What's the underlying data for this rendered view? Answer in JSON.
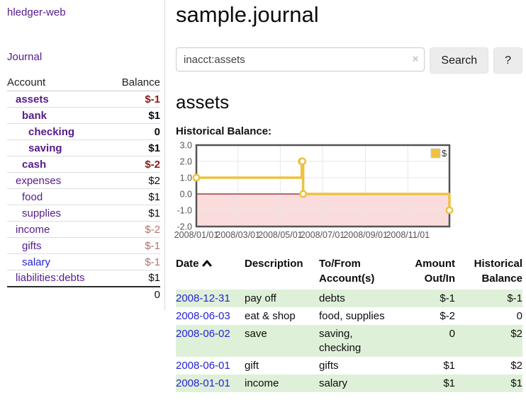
{
  "app": {
    "brand": "hledger-web"
  },
  "colors": {
    "link_purple": "#551a8b",
    "link_blue": "#2424d6",
    "negative_strong": "#8f1a1a",
    "negative_soft": "#b76e6e",
    "row_stripe_green": "#dff0d8",
    "chart_series_yellow": "#edc240",
    "chart_negative_fill": "#fbdcdc",
    "chart_zero_line": "#871a1a"
  },
  "sidebar": {
    "journal_link": "Journal",
    "accounts_table": {
      "headers": [
        "Account",
        "Balance"
      ],
      "rows": [
        {
          "account": "assets",
          "depth": 1,
          "bold": true,
          "balance": "$-1",
          "balance_style": "negative-strong"
        },
        {
          "account": "bank",
          "depth": 2,
          "bold": true,
          "balance": "$1",
          "balance_style": "positive"
        },
        {
          "account": "checking",
          "depth": 3,
          "bold": true,
          "balance": "0",
          "balance_style": "positive"
        },
        {
          "account": "saving",
          "depth": 3,
          "bold": true,
          "balance": "$1",
          "balance_style": "positive"
        },
        {
          "account": "cash",
          "depth": 2,
          "bold": true,
          "balance": "$-2",
          "balance_style": "negative-strong"
        },
        {
          "account": "expenses",
          "depth": 1,
          "bold": false,
          "balance": "$2",
          "balance_style": "positive"
        },
        {
          "account": "food",
          "depth": 2,
          "bold": false,
          "balance": "$1",
          "balance_style": "positive"
        },
        {
          "account": "supplies",
          "depth": 2,
          "bold": false,
          "balance": "$1",
          "balance_style": "positive"
        },
        {
          "account": "income",
          "depth": 1,
          "bold": false,
          "balance": "$-2",
          "balance_style": "negative-soft"
        },
        {
          "account": "gifts",
          "depth": 2,
          "bold": false,
          "balance": "$-1",
          "balance_style": "negative-soft"
        },
        {
          "account": "salary",
          "depth": 2,
          "bold": false,
          "link_style": "unvisited",
          "balance": "$-1",
          "balance_style": "negative-soft"
        },
        {
          "account": "liabilities:debts",
          "depth": 1,
          "bold": false,
          "balance": "$1",
          "balance_style": "positive"
        }
      ],
      "total": "0"
    }
  },
  "main": {
    "title": "sample.journal",
    "search": {
      "value": "inacct:assets",
      "clear_icon": "×",
      "button_label": "Search",
      "help_label": "?"
    },
    "account_heading": "assets",
    "chart_label": "Historical Balance:",
    "register": {
      "headers": [
        "Date",
        "Description",
        "To/From Account(s)",
        "Amount Out/In",
        "Historical Balance"
      ],
      "rows": [
        {
          "date": "2008-12-31",
          "description": "pay off",
          "accounts": "debts",
          "amount": "$-1",
          "balance": "$-1"
        },
        {
          "date": "2008-06-03",
          "description": "eat & shop",
          "accounts": "food, supplies",
          "amount": "$-2",
          "balance": "0"
        },
        {
          "date": "2008-06-02",
          "description": "save",
          "accounts": "saving, checking",
          "amount": "0",
          "balance": "$2"
        },
        {
          "date": "2008-06-01",
          "description": "gift",
          "accounts": "gifts",
          "amount": "$1",
          "balance": "$2"
        },
        {
          "date": "2008-01-01",
          "description": "income",
          "accounts": "salary",
          "amount": "$1",
          "balance": "$1"
        }
      ]
    }
  },
  "chart_data": {
    "type": "line",
    "step": true,
    "title": "Historical Balance",
    "series": [
      {
        "name": "$",
        "color": "#edc240",
        "points": [
          [
            "2008-01-01",
            1
          ],
          [
            "2008-06-01",
            2
          ],
          [
            "2008-06-02",
            2
          ],
          [
            "2008-06-03",
            0
          ],
          [
            "2008-12-31",
            -1
          ]
        ]
      }
    ],
    "xrange": [
      "2008-01-01",
      "2008-12-31"
    ],
    "x_ticks": [
      "2008/01/01",
      "2008/03/01",
      "2008/05/01",
      "2008/07/01",
      "2008/09/01",
      "2008/11/01"
    ],
    "y_ticks": [
      3.0,
      2.0,
      1.0,
      0.0,
      -1.0,
      -2.0
    ],
    "ylim": [
      -2,
      3
    ],
    "legend": {
      "label": "$",
      "position": "top-right"
    },
    "grid": true,
    "negative_region_fill": "#fbdcdc",
    "zero_line_color": "#871a1a"
  }
}
